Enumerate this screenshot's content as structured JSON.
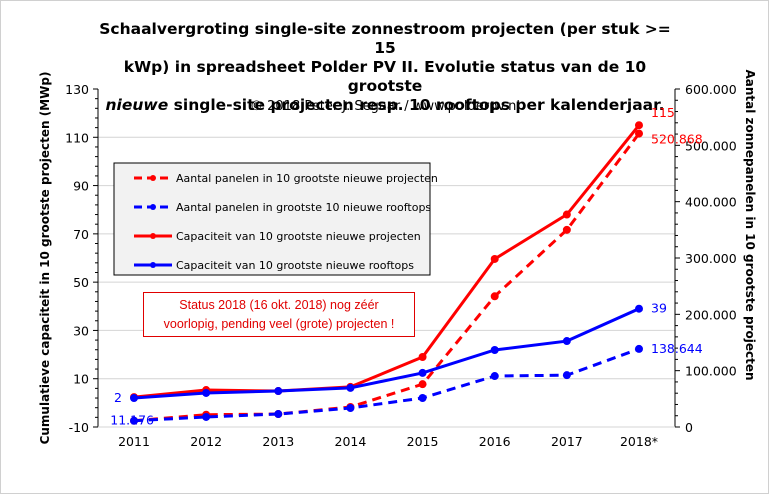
{
  "copyright": "© 2018  Peter J. Segaar / www.polderpv.nl",
  "note": {
    "line1": "Status 2018  (16 okt. 2018)  nog zéér",
    "line2": "voorlopig, pending veel (grote) projecten !"
  },
  "chart_data": {
    "type": "line",
    "title_lines": [
      "Schaalvergroting  single-site  zonnestroom  projecten  (per stuk >= 15",
      "kWp)  in  spreadsheet Polder  PV II.  Evolutie  status van de 10 grootste",
      "single-site  projecten  resp.  10  rooftops  per kalenderjaar."
    ],
    "title_italic_word": "nieuwe",
    "categories": [
      "2011",
      "2012",
      "2013",
      "2014",
      "2015",
      "2016",
      "2017",
      "2018*"
    ],
    "ylabel": "Cumulatieve capaciteit in 10 grootste projecten (MWp)",
    "y2label": "Aantal zonnepanelen in 10 grootste projecten",
    "ylim": [
      -10,
      130
    ],
    "yticks": [
      -10,
      10,
      30,
      50,
      70,
      90,
      110,
      130
    ],
    "y2lim": [
      0,
      600000
    ],
    "y2ticks": [
      0,
      100000,
      200000,
      300000,
      400000,
      500000,
      600000
    ],
    "y2tick_labels": [
      "0",
      "100.000",
      "200.000",
      "300.000",
      "400.000",
      "500.000",
      "600.000"
    ],
    "grid": "horizontal",
    "legend_position": "upper-left",
    "series": [
      {
        "name": "Aantal panelen in 10 grootste nieuwe projecten",
        "axis": "right",
        "style": "dashed",
        "color": "#ff0000",
        "values": [
          11176,
          21800,
          23000,
          35500,
          76000,
          232000,
          350000,
          520868
        ],
        "labels": {
          "7": "520.868"
        }
      },
      {
        "name": "Aantal panelen in grootste 10 nieuwe rooftops",
        "axis": "right",
        "style": "dashed",
        "color": "#0000ff",
        "values": [
          11176,
          17800,
          23000,
          33700,
          51500,
          90500,
          92000,
          138644
        ],
        "labels": {
          "0": "11.176",
          "7": "138.644"
        }
      },
      {
        "name": "Capaciteit van 10 grootste nieuwe projecten",
        "axis": "left",
        "style": "solid",
        "color": "#ff0000",
        "values": [
          2.4,
          5.3,
          4.9,
          6.6,
          19,
          59.6,
          78,
          115
        ],
        "labels": {
          "7": "115"
        }
      },
      {
        "name": "Capaciteit van 10 grootste nieuwe rooftops",
        "axis": "left",
        "style": "solid",
        "color": "#0000ff",
        "values": [
          2,
          4.1,
          4.9,
          6.2,
          12.4,
          21.9,
          25.6,
          39
        ],
        "labels": {
          "0": "2",
          "7": "39"
        }
      }
    ]
  }
}
